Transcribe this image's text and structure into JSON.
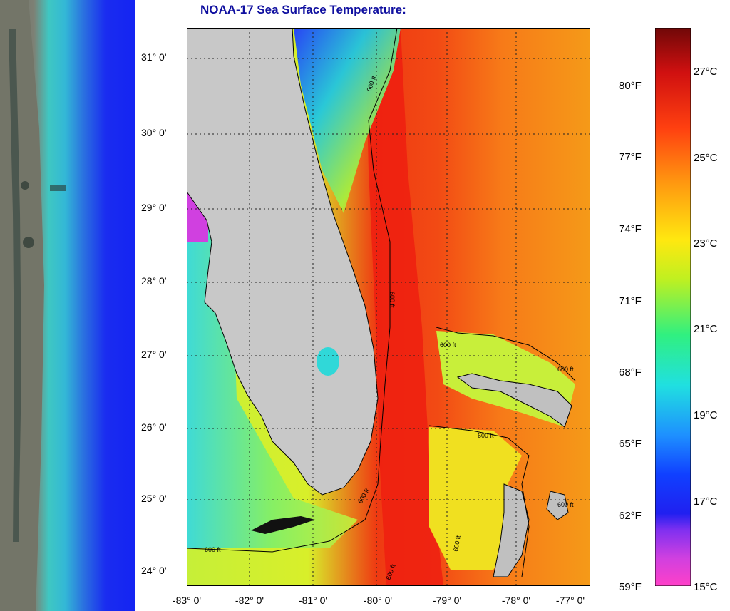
{
  "title": "NOAA-17  Sea Surface Temperature:",
  "map": {
    "lat_ticks": [
      "31° 0'",
      "30° 0'",
      "29° 0'",
      "28° 0'",
      "27° 0'",
      "26° 0'",
      "25° 0'",
      "24° 0'"
    ],
    "lon_ticks": [
      "-83° 0'",
      "-82° 0'",
      "-81° 0'",
      "-80° 0'",
      "-79° 0'",
      "-78° 0'",
      "-77° 0'"
    ],
    "contour_label": "600 ft",
    "colors": {
      "land": "#c8c8c8",
      "gulf_stream": "#ee1e10",
      "atlantic_warm": "#f76614",
      "gulf_of_mexico": "#b8ef3c",
      "cool_coastal": "#1e78ff",
      "border": "#000000"
    }
  },
  "colorbar": {
    "fahrenheit_labels": [
      "80°F",
      "77°F",
      "74°F",
      "71°F",
      "68°F",
      "65°F",
      "62°F",
      "59°F"
    ],
    "celsius_labels": [
      "27°C",
      "25°C",
      "23°C",
      "21°C",
      "19°C",
      "17°C",
      "15°C"
    ],
    "range_f": [
      59,
      82
    ],
    "colors": [
      "#ff40c8",
      "#b030e0",
      "#2020f0",
      "#1e90ff",
      "#20e0e0",
      "#30f080",
      "#c0f020",
      "#ffe810",
      "#ff9a10",
      "#ff4010",
      "#d01010",
      "#700808"
    ]
  }
}
